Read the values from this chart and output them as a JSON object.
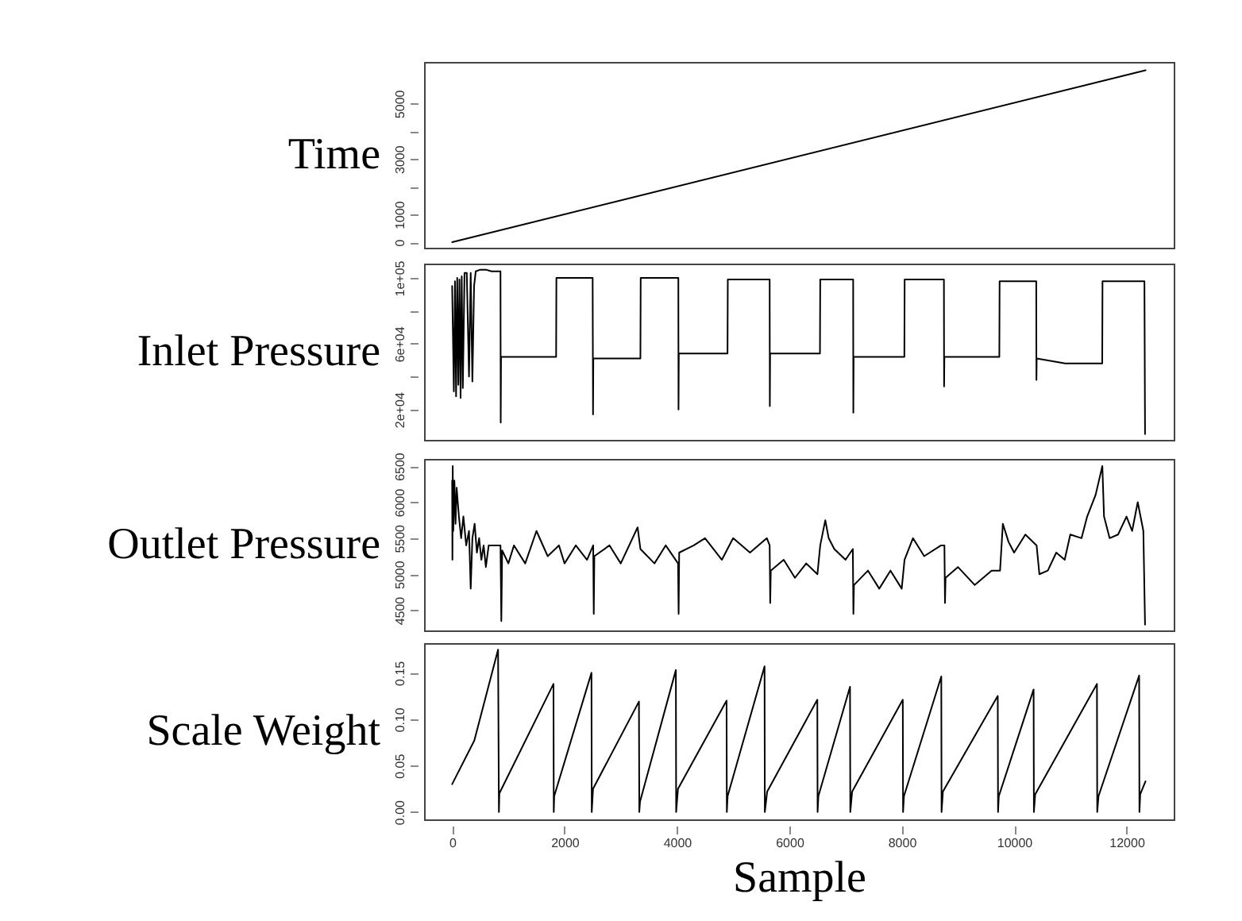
{
  "chart_data": [
    {
      "type": "line",
      "ylabel": "Time",
      "x": [
        1,
        12340
      ],
      "values": [
        0,
        6200
      ],
      "xlim": [
        -500,
        12840
      ],
      "xticks": [
        0,
        2000,
        4000,
        6000,
        8000,
        10000,
        12000
      ],
      "ylim": [
        -200,
        6500
      ],
      "yticks": [
        0,
        1000,
        {
          "value": 2000,
          "label": null
        },
        3000,
        {
          "value": 4000,
          "label": null
        },
        5000
      ],
      "tick_labels": "y",
      "color": "#000000"
    },
    {
      "type": "line",
      "ylabel": "Inlet Pressure",
      "x": [
        0,
        30,
        50,
        70,
        90,
        110,
        130,
        150,
        170,
        190,
        220,
        260,
        300,
        330,
        360,
        390,
        420,
        500,
        600,
        700,
        860,
        864,
        870,
        1850,
        1855,
        2500,
        2507,
        2512,
        3350,
        3355,
        4025,
        4028,
        4033,
        4900,
        4905,
        5650,
        5653,
        5658,
        6545,
        6550,
        7136,
        7139,
        7144,
        8047,
        8052,
        8751,
        8754,
        8759,
        9737,
        9742,
        10394,
        10397,
        10402,
        10911,
        11568,
        11573,
        12319,
        12330
      ],
      "values": [
        95000,
        31000,
        98000,
        28000,
        100000,
        35000,
        99000,
        27000,
        101000,
        33000,
        103000,
        103000,
        40000,
        103000,
        37000,
        95000,
        104000,
        105000,
        105000,
        104000,
        104000,
        12000,
        52000,
        52000,
        100000,
        100000,
        17000,
        51000,
        51000,
        100000,
        100000,
        20000,
        54000,
        54000,
        99000,
        99000,
        22000,
        54000,
        54000,
        99000,
        99000,
        18000,
        52000,
        52000,
        99000,
        99000,
        34000,
        52000,
        52000,
        98000,
        98000,
        38000,
        51000,
        48000,
        48000,
        98000,
        98000,
        5000
      ],
      "xlim": [
        -500,
        12840
      ],
      "xticks": [
        0,
        2000,
        4000,
        6000,
        8000,
        10000,
        12000
      ],
      "ylim": [
        1500,
        108700
      ],
      "yticks": [
        {
          "value": 20000,
          "label": "2e+04"
        },
        {
          "value": 40000,
          "label": null
        },
        {
          "value": 60000,
          "label": "6e+04"
        },
        {
          "value": 80000,
          "label": null
        },
        {
          "value": 100000,
          "label": "1e+05"
        }
      ],
      "tick_labels": "y",
      "color": "#000000"
    },
    {
      "type": "line",
      "ylabel": "Outlet Pressure",
      "x": [
        0,
        5,
        10,
        20,
        40,
        60,
        80,
        120,
        160,
        200,
        250,
        300,
        330,
        360,
        400,
        440,
        480,
        520,
        560,
        600,
        650,
        860,
        875,
        890,
        1000,
        1100,
        1300,
        1500,
        1700,
        1900,
        2000,
        2200,
        2400,
        2510,
        2520,
        2530,
        2800,
        3000,
        3300,
        3350,
        3600,
        3800,
        4020,
        4030,
        4040,
        4300,
        4500,
        4800,
        5000,
        5300,
        5600,
        5650,
        5660,
        5670,
        5900,
        6100,
        6300,
        6500,
        6550,
        6640,
        6700,
        6800,
        7000,
        7130,
        7140,
        7150,
        7400,
        7600,
        7800,
        8000,
        8050,
        8200,
        8400,
        8700,
        8760,
        8770,
        8780,
        9000,
        9300,
        9600,
        9750,
        9800,
        9900,
        10000,
        10200,
        10400,
        10450,
        10600,
        10750,
        10900,
        11000,
        11200,
        11300,
        11450,
        11570,
        11600,
        11700,
        11850,
        12000,
        12100,
        12200,
        12300,
        12330
      ],
      "values": [
        6300,
        5200,
        6500,
        5600,
        6300,
        5700,
        6200,
        5800,
        5500,
        5800,
        5400,
        5600,
        4800,
        5500,
        5700,
        5300,
        5500,
        5200,
        5400,
        5100,
        5400,
        5400,
        4350,
        5330,
        5150,
        5400,
        5150,
        5600,
        5250,
        5400,
        5150,
        5400,
        5200,
        5400,
        4450,
        5250,
        5400,
        5150,
        5650,
        5350,
        5150,
        5400,
        5150,
        4450,
        5300,
        5400,
        5500,
        5200,
        5500,
        5300,
        5500,
        5400,
        4600,
        5050,
        5200,
        4950,
        5150,
        5000,
        5400,
        5750,
        5500,
        5350,
        5200,
        5350,
        4450,
        4850,
        5050,
        4800,
        5050,
        4800,
        5200,
        5500,
        5250,
        5400,
        5400,
        4600,
        4950,
        5100,
        4850,
        5050,
        5050,
        5700,
        5450,
        5300,
        5550,
        5400,
        5000,
        5050,
        5300,
        5200,
        5550,
        5500,
        5800,
        6100,
        6500,
        5800,
        5500,
        5550,
        5800,
        5600,
        6000,
        5600,
        4300
      ],
      "xlim": [
        -500,
        12840
      ],
      "xticks": [
        0,
        2000,
        4000,
        6000,
        8000,
        10000,
        12000
      ],
      "ylim": [
        4220,
        6600
      ],
      "yticks": [
        4500,
        5000,
        5500,
        6000,
        6500
      ],
      "tick_labels": "y",
      "color": "#000000"
    },
    {
      "type": "line",
      "ylabel": "Scale Weight",
      "xlabel": "Sample",
      "x": [
        0,
        394,
        817,
        832,
        840,
        1803,
        1808,
        1816,
        2479,
        2484,
        2507,
        3324,
        3330,
        3343,
        3981,
        3986,
        4019,
        4883,
        4888,
        4902,
        5559,
        5564,
        5606,
        6498,
        6503,
        6517,
        7080,
        7085,
        7118,
        8019,
        8024,
        8040,
        8704,
        8709,
        8733,
        9709,
        9714,
        9728,
        10347,
        10352,
        10375,
        11474,
        11479,
        11502,
        12225,
        12230,
        12244,
        12338
      ],
      "values": [
        0.03,
        0.077,
        0.175,
        0,
        0.02,
        0.138,
        0,
        0.017,
        0.15,
        0,
        0.025,
        0.119,
        0,
        0.011,
        0.153,
        0,
        0.025,
        0.12,
        0,
        0.017,
        0.157,
        0,
        0.022,
        0.121,
        0,
        0.017,
        0.135,
        0,
        0.022,
        0.121,
        0,
        0.017,
        0.146,
        0,
        0.022,
        0.125,
        0,
        0.017,
        0.132,
        0,
        0.019,
        0.138,
        0,
        0.017,
        0.147,
        0,
        0.019,
        0.033
      ],
      "xlim": [
        -500,
        12840
      ],
      "xticks": [
        0,
        2000,
        4000,
        6000,
        8000,
        10000,
        12000
      ],
      "ylim": [
        -0.008,
        0.182
      ],
      "yticks": [
        {
          "value": 0,
          "label": "0.00"
        },
        {
          "value": 0.05,
          "label": "0.05"
        },
        {
          "value": 0.1,
          "label": "0.10"
        },
        {
          "value": 0.15,
          "label": "0.15"
        }
      ],
      "color": "#000000"
    }
  ]
}
